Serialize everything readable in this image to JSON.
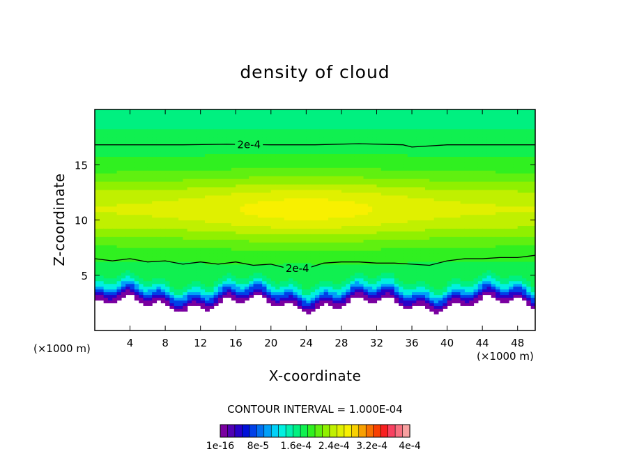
{
  "chart_data": {
    "type": "heatmap",
    "title": "density of cloud",
    "xlabel": "X-coordinate",
    "ylabel": "Z-coordinate",
    "x_unit_label": "(×1000 m)",
    "x_unit_label_left": "(×1000 m)",
    "x_unit_label_right": "(×1000 m)",
    "xlim": [
      0,
      50
    ],
    "ylim": [
      0,
      20
    ],
    "x_ticks": [
      4,
      8,
      12,
      16,
      20,
      24,
      28,
      32,
      36,
      40,
      44,
      48
    ],
    "y_ticks": [
      5,
      10,
      15
    ],
    "contour_interval_text": "CONTOUR INTERVAL = 1.000E-04",
    "colorbar_labels": [
      "1e-16",
      "8e-5",
      "1.6e-4",
      "2.4e-4",
      "3.2e-4",
      "4e-4"
    ],
    "colorbar_colors": [
      "#7a00a0",
      "#5000b4",
      "#2800c8",
      "#0010d8",
      "#0040e8",
      "#0070f0",
      "#00a0f8",
      "#00d0f8",
      "#00f0e0",
      "#00f0b0",
      "#00f080",
      "#10f050",
      "#30f020",
      "#60f010",
      "#90f000",
      "#c0f000",
      "#e0f000",
      "#f8f000",
      "#f8d000",
      "#f8a000",
      "#f87000",
      "#f84000",
      "#f82020",
      "#f84060",
      "#f87080",
      "#f8a0a0"
    ],
    "contours": [
      {
        "label": "2e-4",
        "level": 0.0002,
        "x": [
          0,
          5,
          10,
          15,
          20,
          25,
          30,
          35,
          36,
          40,
          45,
          50
        ],
        "z": [
          16.8,
          16.8,
          16.8,
          16.85,
          16.8,
          16.8,
          16.9,
          16.8,
          16.6,
          16.8,
          16.8,
          16.8
        ]
      },
      {
        "label": "2e-4",
        "level": 0.0002,
        "x": [
          0,
          2,
          4,
          6,
          8,
          10,
          12,
          14,
          16,
          18,
          20,
          22,
          24,
          26,
          28,
          30,
          32,
          34,
          36,
          38,
          40,
          42,
          44,
          46,
          48,
          50
        ],
        "z": [
          6.5,
          6.3,
          6.5,
          6.2,
          6.3,
          6.0,
          6.2,
          6.0,
          6.2,
          5.9,
          6.0,
          5.6,
          5.6,
          6.1,
          6.2,
          6.2,
          6.1,
          6.1,
          6.0,
          5.9,
          6.3,
          6.5,
          6.5,
          6.6,
          6.6,
          6.8
        ]
      }
    ],
    "colorbar_orientation": "horizontal",
    "colorbar_position": "bottom"
  }
}
